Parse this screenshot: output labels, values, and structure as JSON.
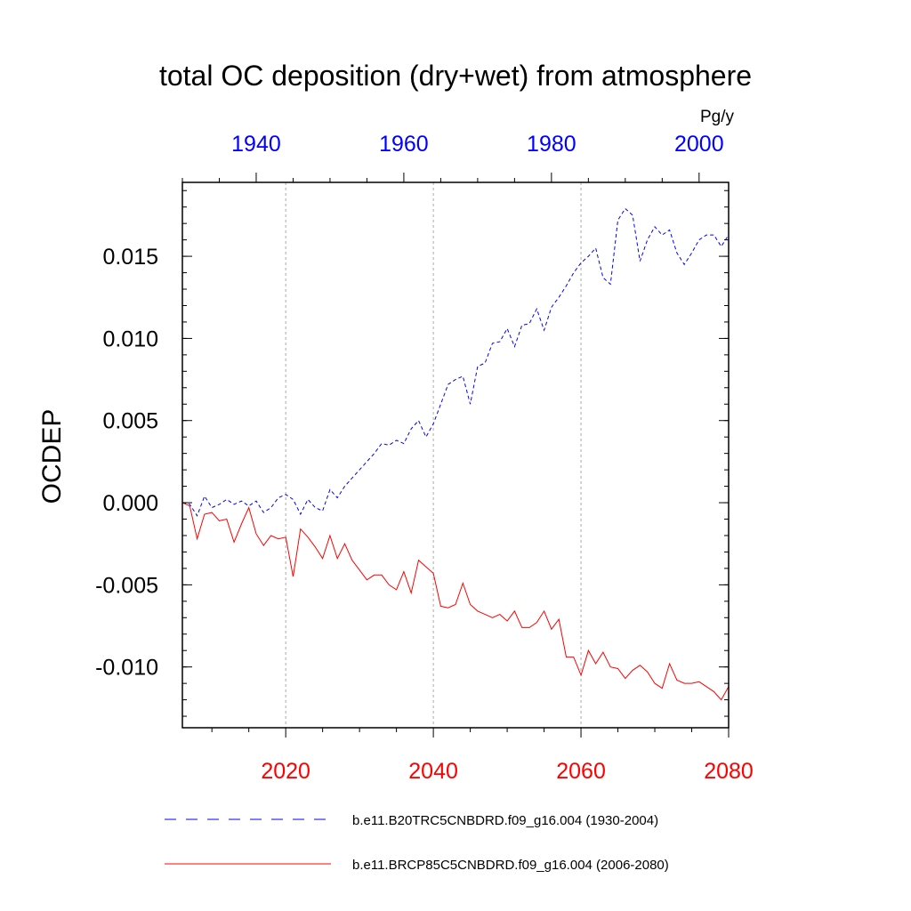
{
  "chart_data": {
    "type": "line",
    "title": "total OC deposition (dry+wet) from atmosphere",
    "ylabel": "OCDEP",
    "units": "Pg/y",
    "ylim": [
      -0.0137,
      0.0195
    ],
    "yticks": [
      -0.01,
      -0.005,
      0.0,
      0.005,
      0.01,
      0.015
    ],
    "ytick_labels": [
      "-0.010",
      "-0.005",
      "0.000",
      "0.005",
      "0.010",
      "0.015"
    ],
    "top_axis": {
      "xlim": [
        1930,
        2004
      ],
      "ticks": [
        1940,
        1960,
        1980,
        2000
      ],
      "tick_labels": [
        "1940",
        "1960",
        "1980",
        "2000"
      ],
      "color": "#0000ff"
    },
    "bottom_axis": {
      "xlim": [
        2006,
        2080
      ],
      "ticks": [
        2020,
        2040,
        2060,
        2080
      ],
      "tick_labels": [
        "2020",
        "2040",
        "2060",
        "2080"
      ],
      "color": "#ff0000"
    },
    "gridlines_at_bottom_years": [
      2020,
      2040,
      2060
    ],
    "series": [
      {
        "name": "b.e11.B20TRC5CNBDRD.f09_g16.004 (1930-2004)",
        "axis": "top",
        "color": "#0000ff",
        "style": "dashed",
        "x": [
          1930,
          1931,
          1932,
          1933,
          1934,
          1935,
          1936,
          1937,
          1938,
          1939,
          1940,
          1941,
          1942,
          1943,
          1944,
          1945,
          1946,
          1947,
          1948,
          1949,
          1950,
          1951,
          1952,
          1953,
          1954,
          1955,
          1956,
          1957,
          1958,
          1959,
          1960,
          1961,
          1962,
          1963,
          1964,
          1965,
          1966,
          1967,
          1968,
          1969,
          1970,
          1971,
          1972,
          1973,
          1974,
          1975,
          1976,
          1977,
          1978,
          1979,
          1980,
          1981,
          1982,
          1983,
          1984,
          1985,
          1986,
          1987,
          1988,
          1989,
          1990,
          1991,
          1992,
          1993,
          1994,
          1995,
          1996,
          1997,
          1998,
          1999,
          2000,
          2001,
          2002,
          2003,
          2004
        ],
        "values": [
          0.0,
          -0.0001,
          -0.0008,
          0.0004,
          -0.0003,
          -0.0001,
          0.0002,
          -0.0001,
          0.0001,
          -0.0002,
          0.0001,
          -0.0006,
          -0.0003,
          0.0003,
          0.0005,
          0.0002,
          -0.0007,
          0.0002,
          -0.0003,
          -0.0005,
          0.0008,
          0.0003,
          0.001,
          0.0015,
          0.002,
          0.0025,
          0.003,
          0.0036,
          0.0035,
          0.0038,
          0.0036,
          0.0045,
          0.005,
          0.004,
          0.0048,
          0.006,
          0.0072,
          0.0075,
          0.0077,
          0.006,
          0.0083,
          0.0085,
          0.0097,
          0.0098,
          0.0106,
          0.0095,
          0.0108,
          0.0109,
          0.0118,
          0.0105,
          0.0119,
          0.0125,
          0.0132,
          0.014,
          0.0146,
          0.015,
          0.0155,
          0.0137,
          0.0133,
          0.0172,
          0.0179,
          0.0175,
          0.0147,
          0.016,
          0.0168,
          0.0163,
          0.0166,
          0.0152,
          0.0145,
          0.0152,
          0.016,
          0.0163,
          0.0163,
          0.0156,
          0.0163
        ]
      },
      {
        "name": "b.e11.BRCP85C5CNBDRD.f09_g16.004 (2006-2080)",
        "axis": "bottom",
        "color": "#ff0000",
        "style": "solid",
        "x": [
          2006,
          2007,
          2008,
          2009,
          2010,
          2011,
          2012,
          2013,
          2014,
          2015,
          2016,
          2017,
          2018,
          2019,
          2020,
          2021,
          2022,
          2023,
          2024,
          2025,
          2026,
          2027,
          2028,
          2029,
          2030,
          2031,
          2032,
          2033,
          2034,
          2035,
          2036,
          2037,
          2038,
          2039,
          2040,
          2041,
          2042,
          2043,
          2044,
          2045,
          2046,
          2047,
          2048,
          2049,
          2050,
          2051,
          2052,
          2053,
          2054,
          2055,
          2056,
          2057,
          2058,
          2059,
          2060,
          2061,
          2062,
          2063,
          2064,
          2065,
          2066,
          2067,
          2068,
          2069,
          2070,
          2071,
          2072,
          2073,
          2074,
          2075,
          2076,
          2077,
          2078,
          2079,
          2080
        ],
        "values": [
          0.0,
          -0.0002,
          -0.0022,
          -0.0007,
          -0.0006,
          -0.0011,
          -0.001,
          -0.0024,
          -0.0013,
          -0.0003,
          -0.0019,
          -0.0026,
          -0.002,
          -0.0022,
          -0.0021,
          -0.0045,
          -0.0016,
          -0.0021,
          -0.0027,
          -0.0034,
          -0.002,
          -0.0034,
          -0.0025,
          -0.0035,
          -0.0041,
          -0.0047,
          -0.0044,
          -0.0044,
          -0.005,
          -0.0053,
          -0.0042,
          -0.0055,
          -0.0035,
          -0.0039,
          -0.0043,
          -0.0063,
          -0.0064,
          -0.0062,
          -0.0049,
          -0.0062,
          -0.0066,
          -0.0068,
          -0.007,
          -0.0068,
          -0.0072,
          -0.0066,
          -0.0076,
          -0.0076,
          -0.0073,
          -0.0066,
          -0.0077,
          -0.0071,
          -0.0094,
          -0.0094,
          -0.0105,
          -0.009,
          -0.0098,
          -0.0091,
          -0.01,
          -0.0101,
          -0.0107,
          -0.0102,
          -0.0099,
          -0.0103,
          -0.011,
          -0.0113,
          -0.0098,
          -0.0108,
          -0.011,
          -0.011,
          -0.0109,
          -0.0112,
          -0.0115,
          -0.012,
          -0.0112
        ]
      }
    ]
  }
}
